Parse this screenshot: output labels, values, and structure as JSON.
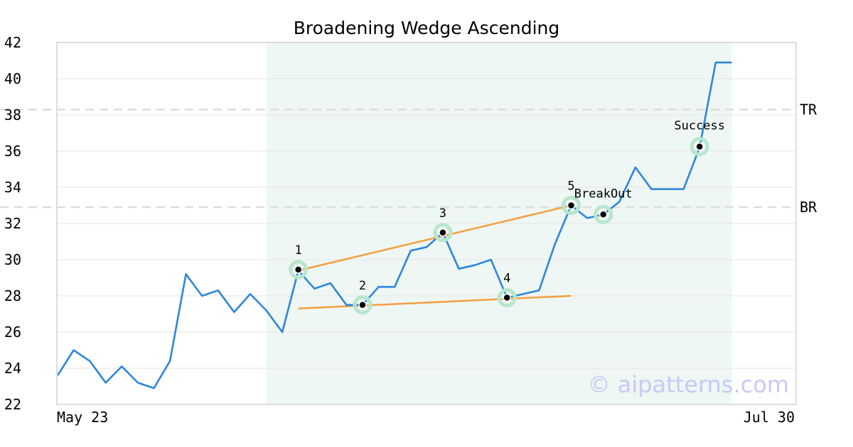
{
  "chart_data": {
    "type": "line",
    "title": "Broadening Wedge Ascending",
    "xlabel": "",
    "ylabel": "",
    "ylim": [
      22,
      42
    ],
    "yticks": [
      "22",
      "24",
      "26",
      "28",
      "30",
      "32",
      "34",
      "36",
      "38",
      "40",
      "42"
    ],
    "x_tick_labels": [
      "May 23",
      "Jul 30"
    ],
    "grid": "horizontal",
    "series": [
      {
        "color": "#2e86de",
        "values": [
          23.6,
          25.0,
          24.4,
          23.2,
          24.1,
          23.2,
          22.9,
          24.4,
          29.2,
          28.0,
          28.3,
          27.1,
          28.1,
          27.2,
          26.0,
          29.4,
          28.4,
          28.7,
          27.5,
          27.5,
          28.5,
          28.5,
          30.5,
          30.7,
          31.5,
          29.5,
          29.7,
          30.0,
          27.9,
          28.1,
          28.3,
          30.9,
          33.0,
          32.3,
          32.5,
          33.2,
          35.1,
          33.9,
          33.9,
          33.9,
          36.2,
          40.9,
          40.9
        ]
      }
    ],
    "pattern_region": {
      "start_index": 13,
      "end_index": 42,
      "color": "#eef7f3"
    },
    "trendlines": [
      {
        "color": "#f4a044",
        "from": [
          15,
          29.4
        ],
        "to": [
          32,
          33.0
        ]
      },
      {
        "color": "#f4a044",
        "from": [
          15,
          27.3
        ],
        "to": [
          32,
          28.0
        ]
      }
    ],
    "levels": [
      {
        "label": "TR",
        "value": 38.3
      },
      {
        "label": "BR",
        "value": 32.9
      }
    ],
    "points": [
      {
        "label": "1",
        "index": 15,
        "value": 29.45
      },
      {
        "label": "2",
        "index": 19,
        "value": 27.5
      },
      {
        "label": "3",
        "index": 24,
        "value": 31.5
      },
      {
        "label": "4",
        "index": 28,
        "value": 27.9
      },
      {
        "label": "5",
        "index": 32,
        "value": 33.0
      },
      {
        "label": "BreakOut",
        "index": 34,
        "value": 32.5
      },
      {
        "label": "Success",
        "index": 40,
        "value": 36.25
      }
    ],
    "watermark": "© aipatterns.com"
  }
}
